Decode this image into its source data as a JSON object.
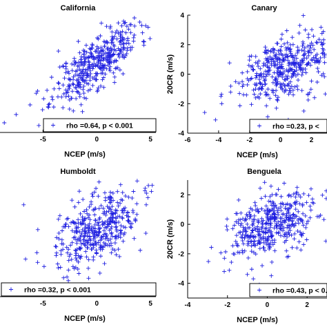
{
  "chart_data": [
    {
      "type": "scatter",
      "title": "California",
      "xlabel": "NCEP (m/s)",
      "ylabel": "",
      "xlim": [
        -9,
        5.5
      ],
      "ylim": [
        -4.5,
        4
      ],
      "xticks": [
        "-5",
        "0",
        "5"
      ],
      "yticks": [],
      "color": "#1f1fe0",
      "marker": "+",
      "legend": {
        "text": "rho =0.64, p < 0.001",
        "position": "bottom-right"
      },
      "cloud": {
        "n": 420,
        "x_mean": 0.0,
        "x_sd": 2.0,
        "slope": 0.55,
        "intercept": 0.6,
        "resid_sd": 0.95
      },
      "points": [
        [
          -8.6,
          -3.8
        ],
        [
          -7.5,
          -3.2
        ],
        [
          -6.2,
          -2.5
        ],
        [
          -5.5,
          -1.5
        ],
        [
          -4.2,
          -0.5
        ],
        [
          4.0,
          3.5
        ],
        [
          3.5,
          3.8
        ],
        [
          2.8,
          3.2
        ]
      ]
    },
    {
      "type": "scatter",
      "title": "Canary",
      "xlabel": "NCEP (m/s)",
      "ylabel": "20CR (m/s)",
      "xlim": [
        -6,
        3
      ],
      "ylim": [
        -4,
        4
      ],
      "xticks": [
        "-6",
        "-4",
        "-2",
        "0",
        "2"
      ],
      "yticks": [
        "-4",
        "-2",
        "0",
        "2",
        "4"
      ],
      "color": "#1f1fe0",
      "marker": "+",
      "legend": {
        "text": "rho =0.23, p <",
        "position": "bottom-right"
      },
      "cloud": {
        "n": 420,
        "x_mean": 0.2,
        "x_sd": 1.5,
        "slope": 0.28,
        "intercept": 0.4,
        "resid_sd": 1.0
      },
      "points": [
        [
          -4.9,
          -2.6
        ],
        [
          -4.2,
          -3.1
        ],
        [
          -3.8,
          -2.0
        ],
        [
          0.1,
          2.7
        ],
        [
          1.6,
          3.0
        ],
        [
          0.5,
          -3.1
        ],
        [
          1.5,
          -2.5
        ]
      ]
    },
    {
      "type": "scatter",
      "title": "Humboldt",
      "xlabel": "NCEP (m/s)",
      "ylabel": "",
      "xlim": [
        -9,
        5.5
      ],
      "ylim": [
        -4.5,
        4
      ],
      "xticks": [
        "-5",
        "0",
        "5"
      ],
      "yticks": [],
      "color": "#1f1fe0",
      "marker": "+",
      "legend": {
        "text": "rho =0.32, p < 0.001",
        "position": "bottom-right"
      },
      "cloud": {
        "n": 420,
        "x_mean": 0.0,
        "x_sd": 2.0,
        "slope": 0.3,
        "intercept": 0.3,
        "resid_sd": 1.15
      },
      "points": [
        [
          -6.8,
          2.2
        ],
        [
          -5.5,
          -2.0
        ],
        [
          -4.9,
          -2.3
        ],
        [
          4.5,
          3.4
        ],
        [
          4.6,
          2.2
        ]
      ]
    },
    {
      "type": "scatter",
      "title": "Benguela",
      "xlabel": "NCEP (m/s)",
      "ylabel": "20CR (m/s)",
      "xlim": [
        -4,
        3
      ],
      "ylim": [
        -5,
        3
      ],
      "xticks": [
        "-4",
        "-2",
        "0",
        "2"
      ],
      "yticks": [
        "-4",
        "-2",
        "0",
        "2"
      ],
      "color": "#1f1fe0",
      "marker": "+",
      "legend": {
        "text": "rho =0.43, p < 0.0",
        "position": "bottom-right"
      },
      "cloud": {
        "n": 420,
        "x_mean": 0.3,
        "x_sd": 1.1,
        "slope": 0.5,
        "intercept": 0.0,
        "resid_sd": 1.0
      },
      "points": [
        [
          -0.4,
          -4.1
        ],
        [
          -1.0,
          -3.4
        ],
        [
          -0.7,
          -3.7
        ],
        [
          2.2,
          2.4
        ],
        [
          1.5,
          2.5
        ]
      ]
    }
  ]
}
